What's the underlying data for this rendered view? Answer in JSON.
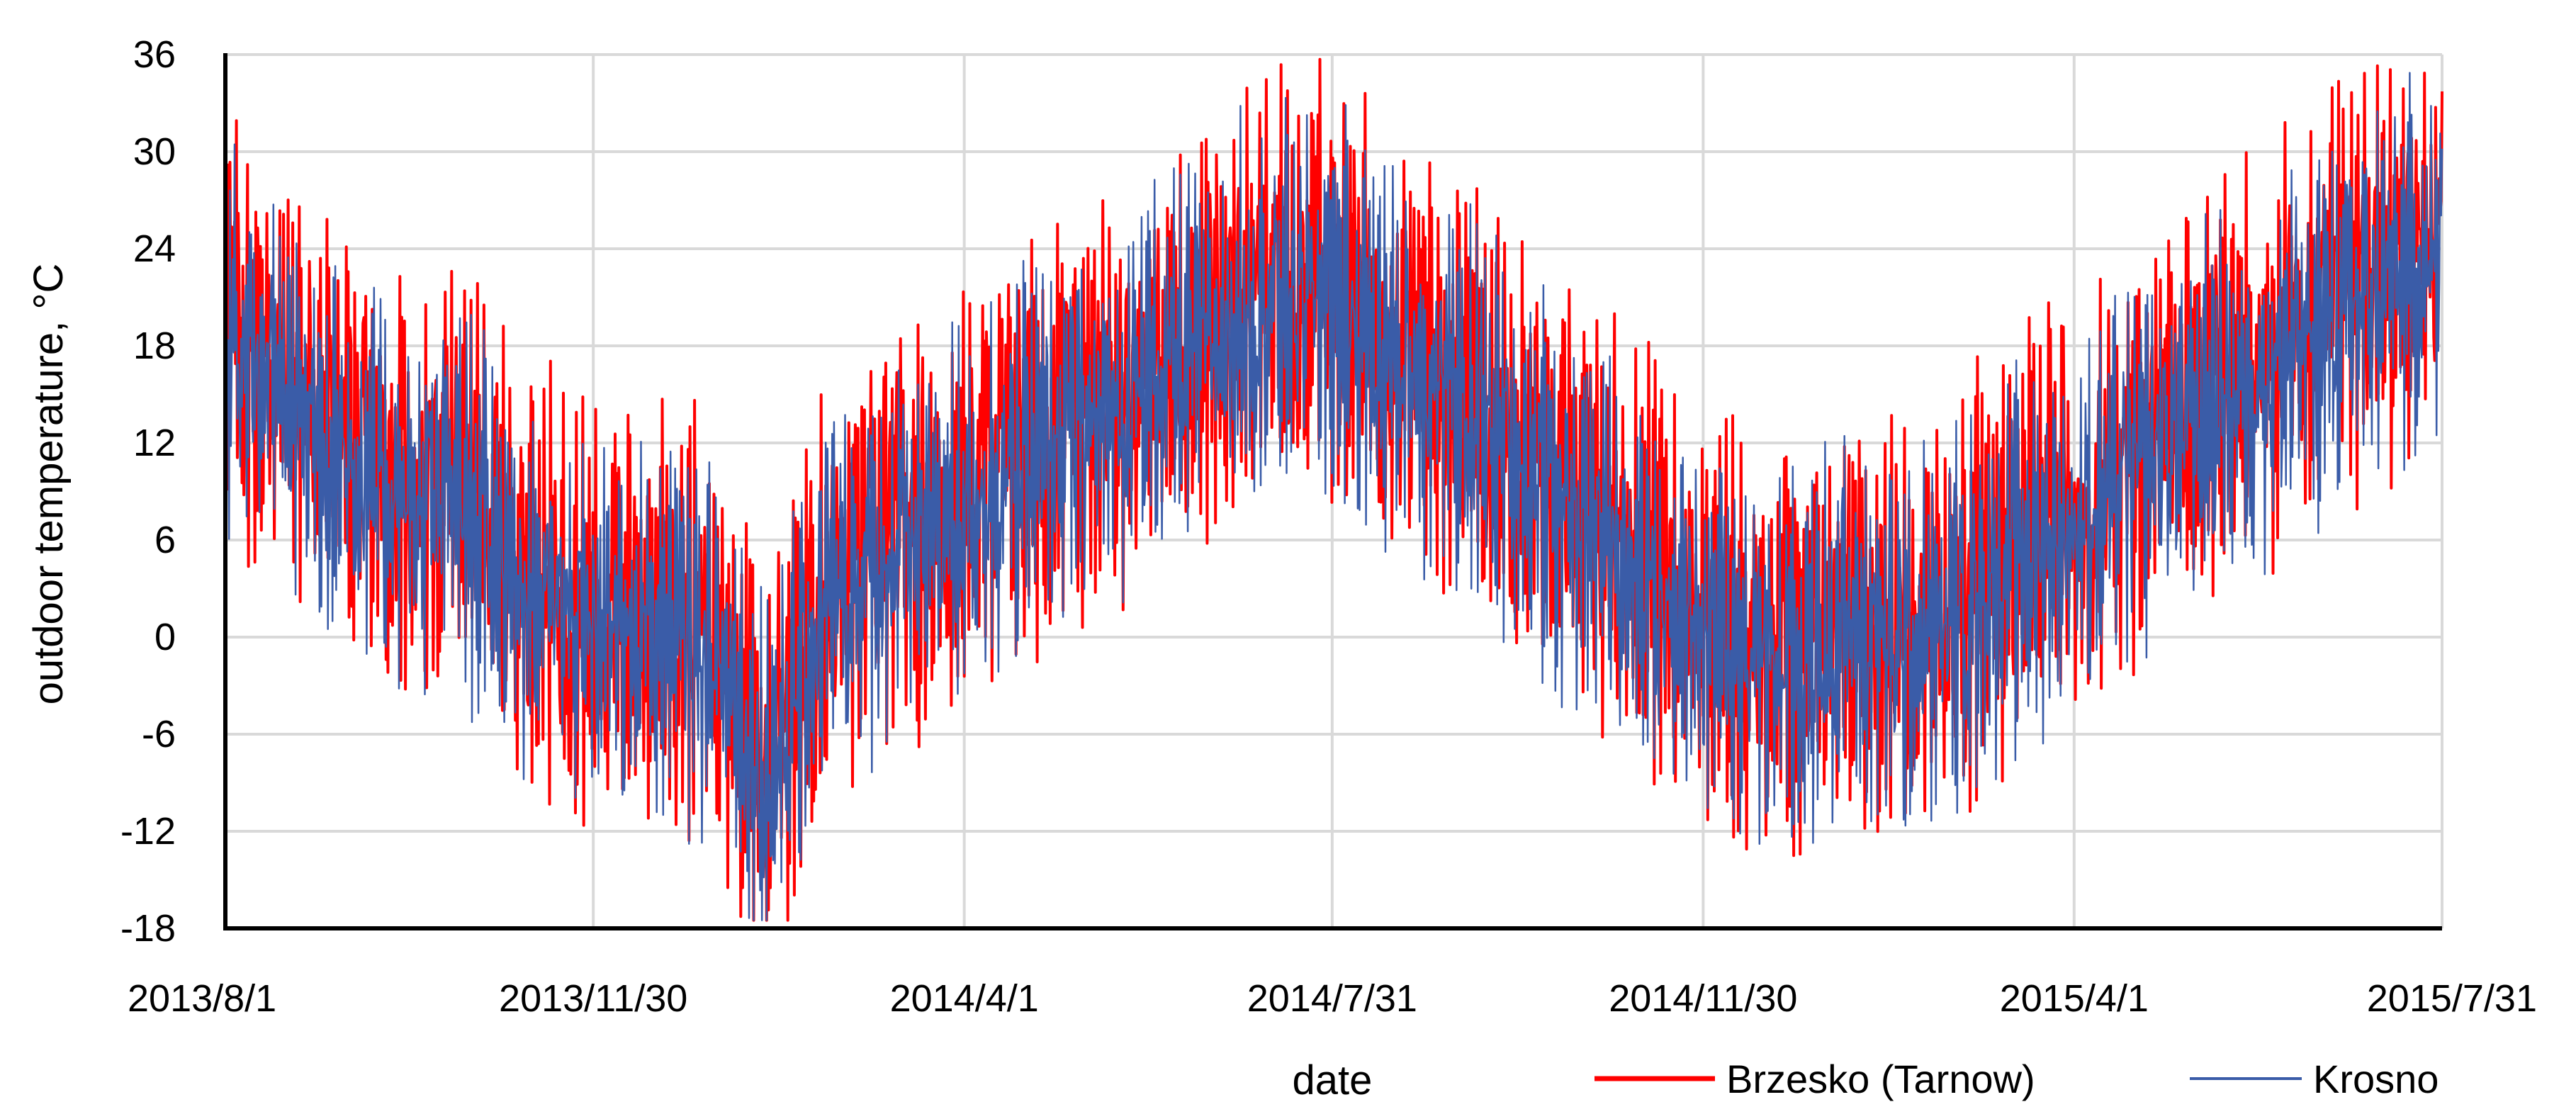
{
  "chart_data": {
    "type": "line",
    "title": "",
    "xlabel": "date",
    "ylabel": "outdoor temperature, °C",
    "ylim": [
      -18,
      36
    ],
    "yticks": [
      -18,
      -12,
      -6,
      0,
      6,
      12,
      18,
      24,
      30,
      36
    ],
    "xlim": [
      "2013/8/1",
      "2015/7/31"
    ],
    "xticks": [
      "2013/8/1",
      "2013/11/30",
      "2014/4/1",
      "2014/7/31",
      "2014/11/30",
      "2015/4/1",
      "2015/7/31"
    ],
    "grid": true,
    "legend_position": "bottom-right",
    "series": [
      {
        "name": "Brzesko (Tarnow)",
        "color": "#ff0000",
        "values": [
          [
            "2013/8/1",
            20
          ],
          [
            "2013/8/15",
            17
          ],
          [
            "2013/9/1",
            14
          ],
          [
            "2013/9/15",
            11
          ],
          [
            "2013/10/1",
            9
          ],
          [
            "2013/10/15",
            10
          ],
          [
            "2013/11/1",
            6
          ],
          [
            "2013/11/15",
            3
          ],
          [
            "2013/11/30",
            1
          ],
          [
            "2013/12/15",
            2
          ],
          [
            "2014/1/1",
            1
          ],
          [
            "2014/1/15",
            -2
          ],
          [
            "2014/1/25",
            -8
          ],
          [
            "2014/2/1",
            -5
          ],
          [
            "2014/2/15",
            3
          ],
          [
            "2014/3/1",
            5
          ],
          [
            "2014/3/15",
            7
          ],
          [
            "2014/4/1",
            9
          ],
          [
            "2014/4/15",
            11
          ],
          [
            "2014/5/1",
            13
          ],
          [
            "2014/5/15",
            14
          ],
          [
            "2014/6/1",
            17
          ],
          [
            "2014/6/15",
            18
          ],
          [
            "2014/7/1",
            21
          ],
          [
            "2014/7/15",
            22
          ],
          [
            "2014/7/31",
            22
          ],
          [
            "2014/8/15",
            19
          ],
          [
            "2014/9/1",
            17
          ],
          [
            "2014/9/15",
            15
          ],
          [
            "2014/10/1",
            12
          ],
          [
            "2014/10/15",
            9
          ],
          [
            "2014/11/1",
            7
          ],
          [
            "2014/11/15",
            4
          ],
          [
            "2014/11/30",
            1
          ],
          [
            "2014/12/15",
            0
          ],
          [
            "2014/12/30",
            -1
          ],
          [
            "2015/1/15",
            2
          ],
          [
            "2015/2/1",
            0
          ],
          [
            "2015/2/15",
            1
          ],
          [
            "2015/3/1",
            4
          ],
          [
            "2015/3/15",
            6
          ],
          [
            "2015/4/1",
            8
          ],
          [
            "2015/4/15",
            10
          ],
          [
            "2015/5/1",
            13
          ],
          [
            "2015/5/15",
            15
          ],
          [
            "2015/6/1",
            17
          ],
          [
            "2015/6/15",
            19
          ],
          [
            "2015/7/1",
            21
          ],
          [
            "2015/7/15",
            23
          ],
          [
            "2015/7/31",
            24
          ]
        ]
      },
      {
        "name": "Krosno",
        "color": "#3a5ca8",
        "values": [
          [
            "2013/8/1",
            19
          ],
          [
            "2013/8/15",
            16
          ],
          [
            "2013/9/1",
            13
          ],
          [
            "2013/9/15",
            10
          ],
          [
            "2013/10/1",
            8
          ],
          [
            "2013/10/15",
            9
          ],
          [
            "2013/11/1",
            5
          ],
          [
            "2013/11/15",
            2
          ],
          [
            "2013/11/30",
            0
          ],
          [
            "2013/12/15",
            1
          ],
          [
            "2014/1/1",
            0
          ],
          [
            "2014/1/15",
            -3
          ],
          [
            "2014/1/25",
            -9
          ],
          [
            "2014/2/1",
            -6
          ],
          [
            "2014/2/15",
            2
          ],
          [
            "2014/3/1",
            4
          ],
          [
            "2014/3/15",
            6
          ],
          [
            "2014/4/1",
            8
          ],
          [
            "2014/4/15",
            10
          ],
          [
            "2014/5/1",
            12
          ],
          [
            "2014/5/15",
            13
          ],
          [
            "2014/6/1",
            16
          ],
          [
            "2014/6/15",
            17
          ],
          [
            "2014/7/1",
            20
          ],
          [
            "2014/7/15",
            21
          ],
          [
            "2014/7/31",
            21
          ],
          [
            "2014/8/15",
            18
          ],
          [
            "2014/9/1",
            16
          ],
          [
            "2014/9/15",
            14
          ],
          [
            "2014/10/1",
            11
          ],
          [
            "2014/10/15",
            8
          ],
          [
            "2014/11/1",
            6
          ],
          [
            "2014/11/15",
            3
          ],
          [
            "2014/11/30",
            0
          ],
          [
            "2014/12/15",
            -1
          ],
          [
            "2014/12/30",
            -2
          ],
          [
            "2015/1/15",
            1
          ],
          [
            "2015/2/1",
            -1
          ],
          [
            "2015/2/15",
            0
          ],
          [
            "2015/3/1",
            3
          ],
          [
            "2015/3/15",
            5
          ],
          [
            "2015/4/1",
            7
          ],
          [
            "2015/4/15",
            9
          ],
          [
            "2015/5/1",
            12
          ],
          [
            "2015/5/15",
            14
          ],
          [
            "2015/6/1",
            16
          ],
          [
            "2015/6/15",
            18
          ],
          [
            "2015/7/1",
            20
          ],
          [
            "2015/7/15",
            22
          ],
          [
            "2015/7/31",
            23
          ]
        ]
      }
    ]
  }
}
